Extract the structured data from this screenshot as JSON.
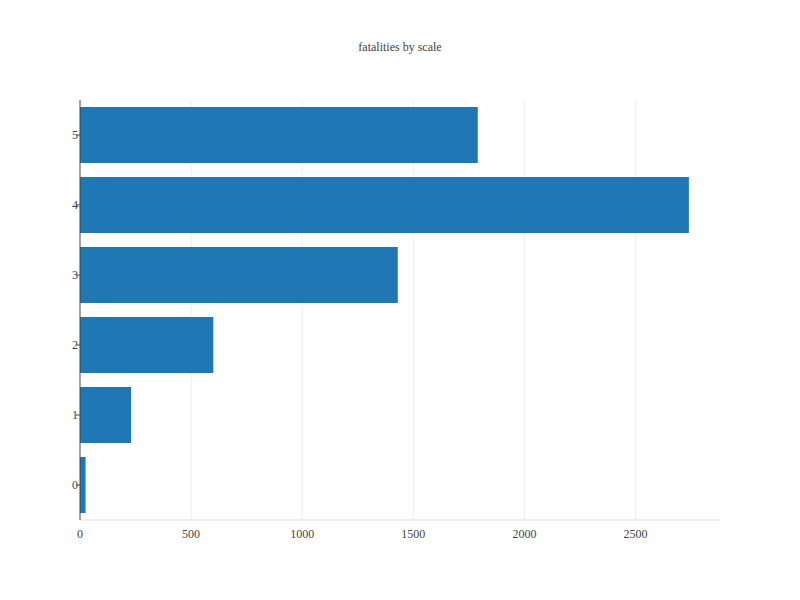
{
  "chart_data": {
    "type": "bar",
    "title": "fatalities by scale",
    "orientation": "horizontal",
    "categories": [
      "0",
      "1",
      "2",
      "3",
      "4",
      "5"
    ],
    "values": [
      25,
      230,
      600,
      1430,
      2740,
      1790
    ],
    "color": "#1f77b4",
    "xlim": [
      0,
      2880
    ],
    "xticks": [
      0,
      500,
      1000,
      1500,
      2000,
      2500
    ],
    "grid": true
  }
}
